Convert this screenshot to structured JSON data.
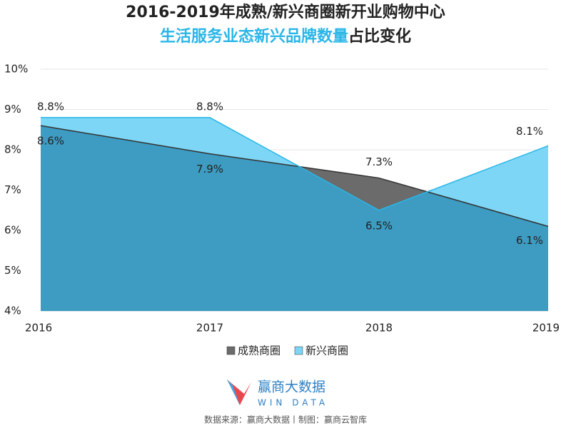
{
  "chart_data": {
    "type": "area",
    "title": "2016-2019年成熟/新兴商圈新开业购物中心",
    "subtitle": {
      "highlight": "生活服务业态新兴品牌数量",
      "rest": "占比变化"
    },
    "categories": [
      "2016",
      "2017",
      "2018",
      "2019"
    ],
    "series": [
      {
        "name": "成熟商圈",
        "color": "#6b6b6b",
        "values": [
          8.6,
          7.9,
          7.3,
          6.1
        ],
        "value_labels": [
          "8.6%",
          "7.9%",
          "7.3%",
          "6.1%"
        ]
      },
      {
        "name": "新兴商圈",
        "color": "#7dd6f5",
        "values": [
          8.8,
          8.8,
          6.5,
          8.1
        ],
        "value_labels": [
          "8.8%",
          "8.8%",
          "6.5%",
          "8.1%"
        ]
      }
    ],
    "overlap_color": "#3e9bc1",
    "ylim": [
      4,
      10
    ],
    "yticks": [
      {
        "value": 4,
        "label": "4%"
      },
      {
        "value": 5,
        "label": "5%"
      },
      {
        "value": 6,
        "label": "6%"
      },
      {
        "value": 7,
        "label": "7%"
      },
      {
        "value": 8,
        "label": "8%"
      },
      {
        "value": 9,
        "label": "9%"
      },
      {
        "value": 10,
        "label": "10%"
      }
    ],
    "grid": true,
    "legend": "bottom"
  },
  "footer": {
    "logo": "赢商大数据",
    "logo_en": "WIN DATA",
    "source": "数据来源：赢商大数据丨制图：赢商云智库"
  }
}
